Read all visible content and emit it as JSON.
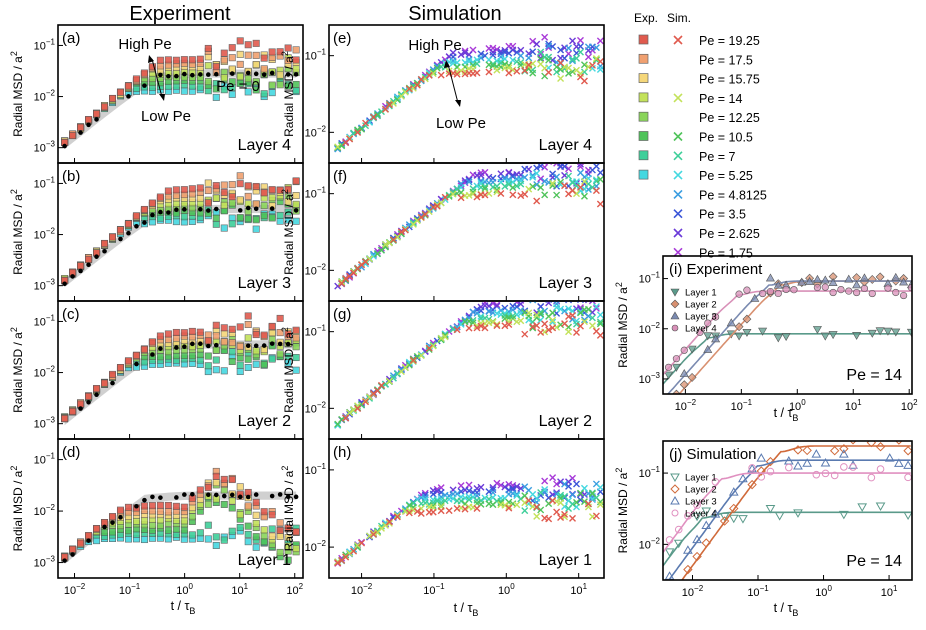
{
  "chart_data": {
    "type": "scatter",
    "column_titles": {
      "experiment": "Experiment",
      "simulation": "Simulation"
    },
    "ylabel": "Radial MSD / a²",
    "xlabel": "t / τB",
    "axes": {
      "x_exp": {
        "range": [
          -2.3,
          2.15
        ],
        "ticks": [
          -2,
          -1,
          0,
          1,
          2
        ]
      },
      "x_sim": {
        "range": [
          -2.45,
          1.35
        ],
        "ticks": [
          -2,
          -1,
          0,
          1
        ]
      },
      "y_main": {
        "range": [
          -3.3,
          -0.6
        ],
        "ticks": [
          -3,
          -2,
          -1
        ]
      },
      "y_sim_top": {
        "range": [
          -2.4,
          -0.55
        ],
        "ticks": [
          -2,
          -1
        ]
      },
      "x_inset_i": {
        "range": [
          -2.4,
          2.05
        ],
        "ticks": [
          -2,
          -1,
          0,
          1,
          2
        ]
      },
      "x_inset_j": {
        "range": [
          -2.45,
          1.35
        ],
        "ticks": [
          -2,
          -1,
          0,
          1
        ]
      },
      "y_inset": {
        "range": [
          -3.3,
          -0.55
        ],
        "ticks": [
          -3,
          -2,
          -1
        ]
      },
      "y_inset_j": {
        "range": [
          -2.5,
          -0.55
        ],
        "ticks": [
          -2,
          -1
        ]
      }
    },
    "panels": [
      {
        "id": "a",
        "label": "(a)",
        "layer": "Layer 4",
        "column": "experiment",
        "plateau": -1.25,
        "zero_plateau": -1.55
      },
      {
        "id": "b",
        "label": "(b)",
        "layer": "Layer 3",
        "column": "experiment",
        "plateau": -1.1,
        "zero_plateau": -1.5
      },
      {
        "id": "c",
        "label": "(c)",
        "layer": "Layer 2",
        "column": "experiment",
        "plateau": -1.2,
        "zero_plateau": -1.45
      },
      {
        "id": "d",
        "label": "(d)",
        "layer": "Layer 1",
        "column": "experiment",
        "plateau": -1.9,
        "zero_plateau": -1.7
      },
      {
        "id": "e",
        "label": "(e)",
        "layer": "Layer 4",
        "column": "simulation",
        "plateau": -1.05
      },
      {
        "id": "f",
        "label": "(f)",
        "layer": "Layer 3",
        "column": "simulation",
        "plateau": -0.85
      },
      {
        "id": "g",
        "label": "(g)",
        "layer": "Layer 2",
        "column": "simulation",
        "plateau": -0.75
      },
      {
        "id": "h",
        "label": "(h)",
        "layer": "Layer 1",
        "column": "simulation",
        "plateau": -1.35
      }
    ],
    "annotations": {
      "high_pe": "High Pe",
      "low_pe": "Low Pe",
      "pe_zero": "Pe = 0"
    },
    "legend": {
      "header_exp": "Exp.",
      "header_sim": "Sim.",
      "entries": [
        {
          "label": "Pe = 19.25",
          "exp": true,
          "sim": true,
          "color": "#e05a4e"
        },
        {
          "label": "Pe = 17.5",
          "exp": true,
          "sim": false,
          "color": "#f0a070"
        },
        {
          "label": "Pe = 15.75",
          "exp": true,
          "sim": false,
          "color": "#f5d77a"
        },
        {
          "label": "Pe = 14",
          "exp": true,
          "sim": true,
          "color": "#c3e25a"
        },
        {
          "label": "Pe = 12.25",
          "exp": true,
          "sim": false,
          "color": "#8ad45a"
        },
        {
          "label": "Pe = 10.5",
          "exp": true,
          "sim": true,
          "color": "#4fc35a"
        },
        {
          "label": "Pe = 7",
          "exp": true,
          "sim": true,
          "color": "#3fcf9a"
        },
        {
          "label": "Pe = 5.25",
          "exp": true,
          "sim": true,
          "color": "#45d8e0"
        },
        {
          "label": "Pe = 4.8125",
          "exp": false,
          "sim": true,
          "color": "#3a9de0"
        },
        {
          "label": "Pe = 3.5",
          "exp": false,
          "sim": true,
          "color": "#3a55d8"
        },
        {
          "label": "Pe = 2.625",
          "exp": false,
          "sim": true,
          "color": "#6a3ad8"
        },
        {
          "label": "Pe = 1.75",
          "exp": false,
          "sim": true,
          "color": "#a83ad8"
        }
      ]
    },
    "insets": [
      {
        "id": "i",
        "label": "(i)",
        "title": "Experiment",
        "pe": "Pe = 14",
        "layers": [
          {
            "name": "Layer 1",
            "color": "#5a9a8a",
            "plateau": -2.1,
            "marker": "tri_down",
            "filled": true
          },
          {
            "name": "Layer 2",
            "color": "#d89070",
            "plateau": -1.05,
            "marker": "diamond",
            "filled": true
          },
          {
            "name": "Layer 3",
            "color": "#7a8ab0",
            "plateau": -1.05,
            "marker": "tri_up",
            "filled": true
          },
          {
            "name": "Layer 4",
            "color": "#d890b8",
            "plateau": -1.25,
            "marker": "circle",
            "filled": true
          }
        ]
      },
      {
        "id": "j",
        "label": "(j)",
        "title": "Simulation",
        "pe": "Pe = 14",
        "layers": [
          {
            "name": "Layer 1",
            "color": "#5a9a8a",
            "plateau": -1.55,
            "marker": "tri_down",
            "filled": false
          },
          {
            "name": "Layer 2",
            "color": "#d06a3a",
            "plateau": -0.62,
            "marker": "diamond",
            "filled": false
          },
          {
            "name": "Layer 3",
            "color": "#5a7ab0",
            "plateau": -0.82,
            "marker": "tri_up",
            "filled": false
          },
          {
            "name": "Layer 4",
            "color": "#e090c0",
            "plateau": -1.0,
            "marker": "circle",
            "filled": false
          }
        ]
      }
    ]
  }
}
